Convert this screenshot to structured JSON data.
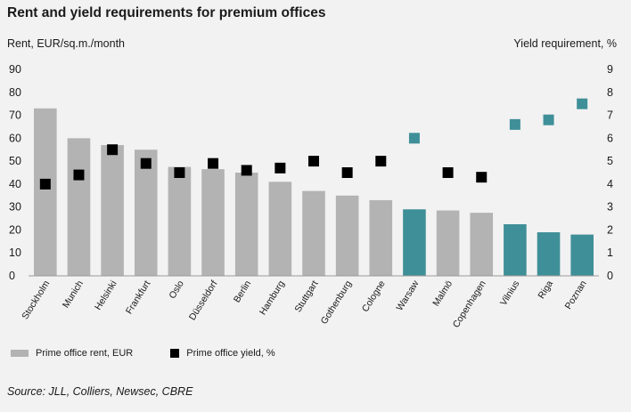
{
  "chart_data": {
    "type": "bar",
    "title": "Rent and yield requirements for premium offices",
    "ylabel": "Rent, EUR/sq.m./month",
    "y2label": "Yield requirement, %",
    "ylim": [
      0,
      90
    ],
    "y2lim": [
      0,
      9
    ],
    "yticks": [
      0,
      10,
      20,
      30,
      40,
      50,
      60,
      70,
      80,
      90
    ],
    "y2ticks": [
      0,
      1,
      2,
      3,
      4,
      5,
      6,
      7,
      8,
      9
    ],
    "categories": [
      "Stockholm",
      "Munich",
      "Helsinki",
      "Frankfurt",
      "Oslo",
      "Düsseldorf",
      "Berlin",
      "Hamburg",
      "Stuttgart",
      "Gothenburg",
      "Cologne",
      "Warsaw",
      "Malmö",
      "Copenhagen",
      "Vilnius",
      "Riga",
      "Poznan"
    ],
    "highlight": [
      false,
      false,
      false,
      false,
      false,
      false,
      false,
      false,
      false,
      false,
      false,
      true,
      false,
      false,
      true,
      true,
      true
    ],
    "series": [
      {
        "name": "Prime office rent, EUR",
        "kind": "bar",
        "axis": "left",
        "values": [
          73,
          60,
          57,
          55,
          47.5,
          46.5,
          45,
          41,
          37,
          35,
          33,
          29,
          28.5,
          27.5,
          22.5,
          19,
          18
        ]
      },
      {
        "name": "Prime office yield, %",
        "kind": "marker",
        "axis": "right",
        "values": [
          4.0,
          4.4,
          5.5,
          4.9,
          4.5,
          4.9,
          4.6,
          4.7,
          5.0,
          4.5,
          5.0,
          6.0,
          4.5,
          4.3,
          6.6,
          6.8,
          7.5
        ]
      }
    ],
    "legend_position": "bottom-left"
  },
  "colors": {
    "bar_grey": "#b3b3b3",
    "bar_teal": "#3f8f98",
    "marker_black": "#000000",
    "marker_teal": "#3f8f98",
    "background": "#f2f2f2"
  },
  "legend": {
    "rent_label": "Prime office rent, EUR",
    "yield_label": "Prime office yield, %"
  },
  "source": "Source: JLL, Colliers, Newsec, CBRE"
}
